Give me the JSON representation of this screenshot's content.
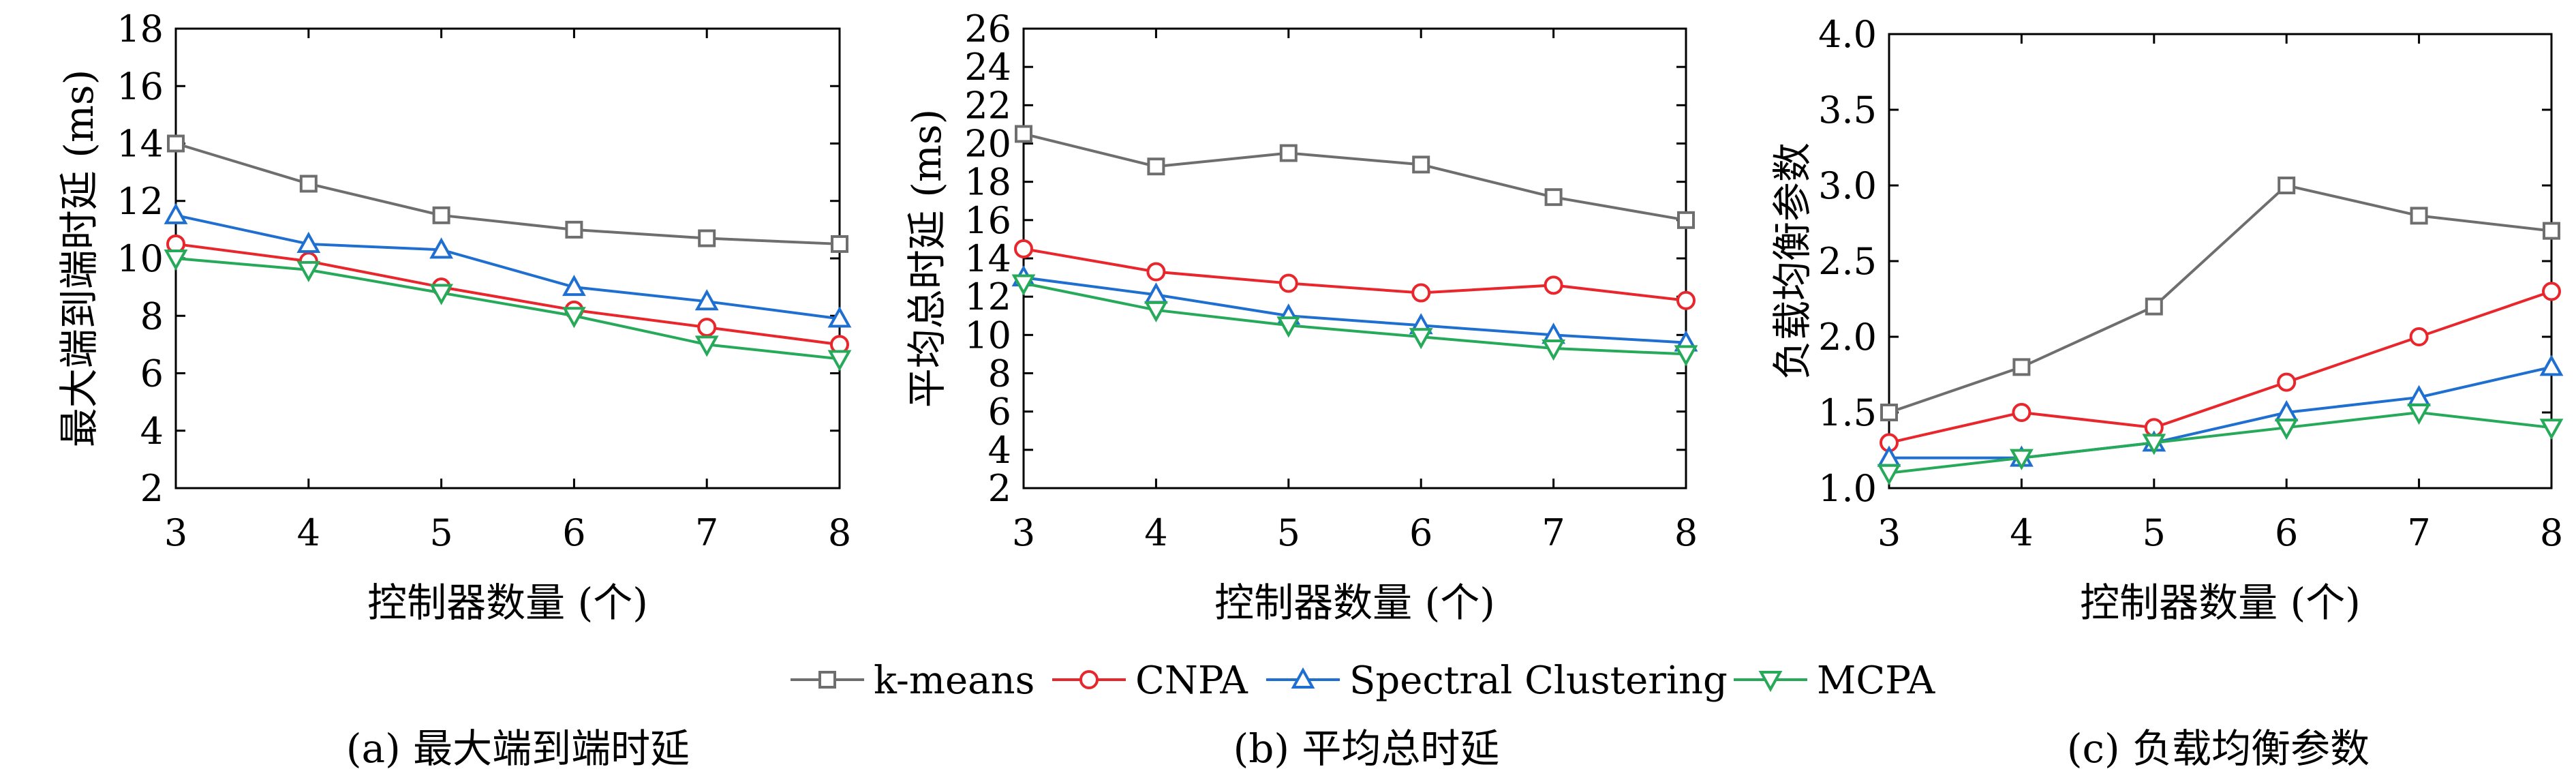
{
  "series_styles": [
    {
      "name": "k-means",
      "color": "#6e6e6e",
      "marker": "square"
    },
    {
      "name": "CNPA",
      "color": "#e8262b",
      "marker": "circle"
    },
    {
      "name": "Spectral Clustering",
      "color": "#1f6fd1",
      "marker": "triangle-up"
    },
    {
      "name": "MCPA",
      "color": "#27a95a",
      "marker": "triangle-down"
    }
  ],
  "legend": {
    "placement": "bottom-center",
    "entries": [
      "k-means",
      "CNPA",
      "Spectral Clustering",
      "MCPA"
    ]
  },
  "chart_data": [
    {
      "type": "line",
      "caption": "(a) 最大端到端时延",
      "xlabel": "控制器数量 (个)",
      "ylabel": "最大端到端时延 (ms)",
      "x": [
        3,
        4,
        5,
        6,
        7,
        8
      ],
      "xlim": [
        3,
        8
      ],
      "ylim": [
        2,
        18
      ],
      "xticks": [
        "3",
        "4",
        "5",
        "6",
        "7",
        "8"
      ],
      "yticks": [
        "2",
        "4",
        "6",
        "8",
        "10",
        "12",
        "14",
        "16",
        "18"
      ],
      "ytick_values": [
        2,
        4,
        6,
        8,
        10,
        12,
        14,
        16,
        18
      ],
      "grid": false,
      "series": [
        {
          "name": "k-means",
          "values": [
            14.0,
            12.6,
            11.5,
            11.0,
            10.7,
            10.5
          ]
        },
        {
          "name": "CNPA",
          "values": [
            10.5,
            9.9,
            9.0,
            8.2,
            7.6,
            7.0
          ]
        },
        {
          "name": "Spectral Clustering",
          "values": [
            11.5,
            10.5,
            10.3,
            9.0,
            8.5,
            7.9
          ]
        },
        {
          "name": "MCPA",
          "values": [
            10.0,
            9.6,
            8.8,
            8.0,
            7.0,
            6.5
          ]
        }
      ]
    },
    {
      "type": "line",
      "caption": "(b) 平均总时延",
      "xlabel": "控制器数量 (个)",
      "ylabel": "平均总时延 (ms)",
      "x": [
        3,
        4,
        5,
        6,
        7,
        8
      ],
      "xlim": [
        3,
        8
      ],
      "ylim": [
        2,
        26
      ],
      "xticks": [
        "3",
        "4",
        "5",
        "6",
        "7",
        "8"
      ],
      "yticks": [
        "2",
        "4",
        "6",
        "8",
        "10",
        "12",
        "14",
        "16",
        "18",
        "20",
        "22",
        "24",
        "26"
      ],
      "ytick_values": [
        2,
        4,
        6,
        8,
        10,
        12,
        14,
        16,
        18,
        20,
        22,
        24,
        26
      ],
      "grid": false,
      "series": [
        {
          "name": "k-means",
          "values": [
            20.5,
            18.8,
            19.5,
            18.9,
            17.2,
            16.0
          ]
        },
        {
          "name": "CNPA",
          "values": [
            14.5,
            13.3,
            12.7,
            12.2,
            12.6,
            11.8
          ]
        },
        {
          "name": "Spectral Clustering",
          "values": [
            13.0,
            12.1,
            11.0,
            10.5,
            10.0,
            9.6
          ]
        },
        {
          "name": "MCPA",
          "values": [
            12.7,
            11.3,
            10.5,
            9.9,
            9.3,
            9.0
          ]
        }
      ]
    },
    {
      "type": "line",
      "caption": "(c) 负载均衡参数",
      "xlabel": "控制器数量 (个)",
      "ylabel": "负载均衡参数",
      "x": [
        3,
        4,
        5,
        6,
        7,
        8
      ],
      "xlim": [
        3,
        8
      ],
      "ylim": [
        1.0,
        4.0
      ],
      "xticks": [
        "3",
        "4",
        "5",
        "6",
        "7",
        "8"
      ],
      "yticks": [
        "1.0",
        "1.5",
        "2.0",
        "2.5",
        "3.0",
        "3.5",
        "4.0"
      ],
      "ytick_values": [
        1.0,
        1.5,
        2.0,
        2.5,
        3.0,
        3.5,
        4.0
      ],
      "grid": false,
      "series": [
        {
          "name": "k-means",
          "values": [
            1.5,
            1.8,
            2.2,
            3.0,
            2.8,
            2.7
          ]
        },
        {
          "name": "CNPA",
          "values": [
            1.3,
            1.5,
            1.4,
            1.7,
            2.0,
            2.3
          ]
        },
        {
          "name": "Spectral Clustering",
          "values": [
            1.2,
            1.2,
            1.3,
            1.5,
            1.6,
            1.8
          ]
        },
        {
          "name": "MCPA",
          "values": [
            1.1,
            1.2,
            1.3,
            1.4,
            1.5,
            1.4
          ]
        }
      ]
    }
  ]
}
